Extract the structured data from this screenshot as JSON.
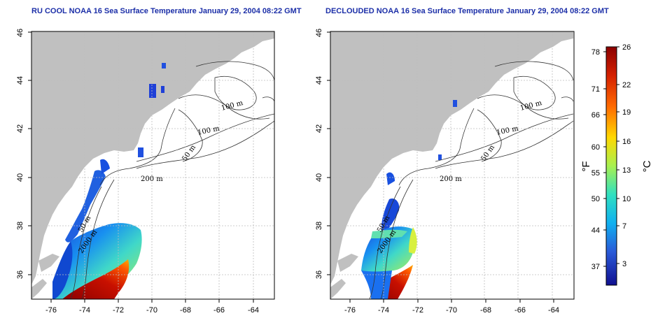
{
  "panels": [
    {
      "title": "RU COOL NOAA 16 Sea Surface Temperature January 29, 2004 08:22 GMT",
      "contour_labels": [
        "100 m",
        "100 m",
        "50 m",
        "200 m",
        "50 m",
        "2000 m"
      ]
    },
    {
      "title": "DECLOUDED NOAA 16 Sea Surface Temperature January 29, 2004 08:22 GMT",
      "contour_labels": [
        "100 m",
        "100 m",
        "50 m",
        "200 m",
        "50 m",
        "2000 m"
      ]
    }
  ],
  "map_axes": {
    "x_ticks": [
      "-76",
      "-74",
      "-72",
      "-70",
      "-68",
      "-66",
      "-64"
    ],
    "y_ticks": [
      "36",
      "38",
      "40",
      "42",
      "44",
      "46"
    ],
    "lon_range": [
      -77.2,
      -62.8
    ],
    "lat_range": [
      35.0,
      46.0
    ]
  },
  "colorbar": {
    "fahrenheit_ticks": [
      "78",
      "71",
      "66",
      "60",
      "55",
      "50",
      "44",
      "37"
    ],
    "celsius_ticks": [
      "26",
      "22",
      "19",
      "16",
      "13",
      "10",
      "7",
      "3"
    ],
    "fahrenheit_label": "°F",
    "celsius_label": "°C",
    "colors": [
      "#8b0000",
      "#d42000",
      "#ff6a00",
      "#ffd800",
      "#a8f050",
      "#30e0c0",
      "#10b0f0",
      "#2a5ad8",
      "#101090"
    ]
  },
  "colors": {
    "land": "#c0c0c0",
    "title": "#1c2fa8",
    "grid": "#bdbdbd"
  }
}
